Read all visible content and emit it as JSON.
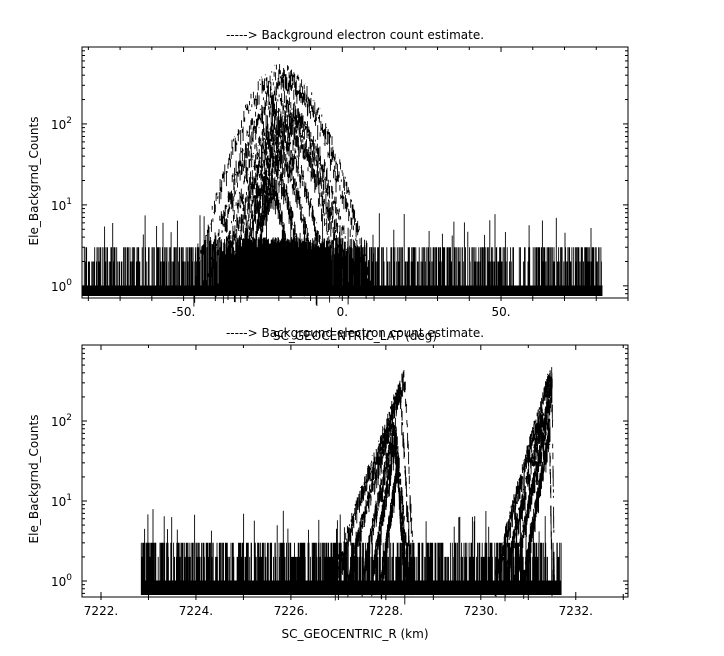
{
  "chart_data": [
    {
      "type": "line",
      "title": "-----> Background electron count estimate.",
      "xlabel": "SC_GEOCENTRIC_LAT (deg)",
      "ylabel": "Ele_Backgrnd_Counts",
      "xlim": [
        -82,
        90
      ],
      "ylim_log10": [
        -0.15,
        2.95
      ],
      "yscale": "log",
      "x_ticks": [
        -50,
        0,
        50
      ],
      "x_tick_labels": [
        "-50.",
        "0.",
        "50."
      ],
      "y_ticks": [
        1,
        10,
        100
      ],
      "y_tick_labels_base": [
        "10",
        "10",
        "10"
      ],
      "y_tick_labels_exp": [
        "0",
        "1",
        "2"
      ],
      "grid": false,
      "noise_range": [
        -82,
        82
      ],
      "noise_floor": 1,
      "noise_level_near_edges": 3,
      "arcs": [
        {
          "x0": -47,
          "x1": 8,
          "peak": 450
        },
        {
          "x0": -44,
          "x1": 10,
          "peak": 340
        },
        {
          "x0": -42,
          "x1": 3,
          "peak": 200
        },
        {
          "x0": -40,
          "x1": 5,
          "peak": 150
        },
        {
          "x0": -38,
          "x1": 2,
          "peak": 110
        },
        {
          "x0": -36,
          "x1": 0,
          "peak": 90
        },
        {
          "x0": -34,
          "x1": -4,
          "peak": 60
        },
        {
          "x0": -32,
          "x1": -8,
          "peak": 40
        },
        {
          "x0": -30,
          "x1": -12,
          "peak": 25
        },
        {
          "x0": -28,
          "x1": -16,
          "peak": 15
        }
      ]
    },
    {
      "type": "line",
      "title": "-----> Background electron count estimate.",
      "xlabel": "SC_GEOCENTRIC_R (km)",
      "ylabel": "Ele_Backgrnd_Counts",
      "xlim": [
        7221.6,
        7233.1
      ],
      "ylim_log10": [
        -0.2,
        2.95
      ],
      "yscale": "log",
      "x_ticks": [
        7222,
        7224,
        7226,
        7228,
        7230,
        7232
      ],
      "x_tick_labels": [
        "7222.",
        "7224.",
        "7226.",
        "7228.",
        "7230.",
        "7232."
      ],
      "y_ticks": [
        1,
        10,
        100
      ],
      "y_tick_labels_base": [
        "10",
        "10",
        "10"
      ],
      "y_tick_labels_exp": [
        "0",
        "1",
        "2"
      ],
      "grid": false,
      "noise_range": [
        7222.85,
        7231.7
      ],
      "noise_floor": 1,
      "noise_level_near_edges": 3,
      "ramps": [
        {
          "x0": 7226.9,
          "x_peak": 7228.4,
          "x_end": 7228.6,
          "peak": 400
        },
        {
          "x0": 7227.2,
          "x_peak": 7228.3,
          "x_end": 7228.55,
          "peak": 280
        },
        {
          "x0": 7227.5,
          "x_peak": 7228.2,
          "x_end": 7228.5,
          "peak": 100
        },
        {
          "x0": 7227.7,
          "x_peak": 7228.2,
          "x_end": 7228.45,
          "peak": 60
        },
        {
          "x0": 7227.9,
          "x_peak": 7228.25,
          "x_end": 7228.4,
          "peak": 30
        },
        {
          "x0": 7230.3,
          "x_peak": 7231.5,
          "x_end": 7231.55,
          "peak": 480
        },
        {
          "x0": 7230.5,
          "x_peak": 7231.5,
          "x_end": 7231.55,
          "peak": 300
        },
        {
          "x0": 7230.7,
          "x_peak": 7231.45,
          "x_end": 7231.5,
          "peak": 150
        },
        {
          "x0": 7230.9,
          "x_peak": 7231.45,
          "x_end": 7231.5,
          "peak": 80
        }
      ]
    }
  ]
}
